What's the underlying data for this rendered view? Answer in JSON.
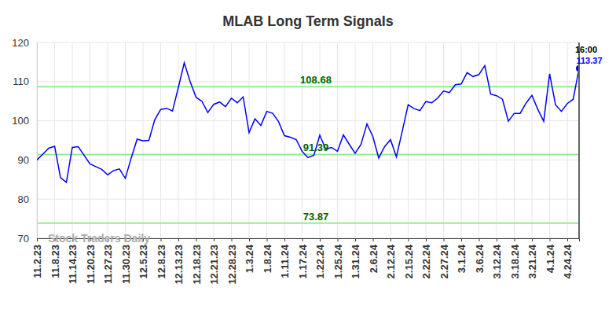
{
  "chart_data": {
    "type": "line",
    "title": "MLAB Long Term Signals",
    "watermark": "Stock Traders Daily",
    "last_time": "16:00",
    "color": "#0000ff",
    "ylim": [
      70,
      120
    ],
    "yticks": [
      70,
      80,
      90,
      100,
      110,
      120
    ],
    "grid": true,
    "signal_levels": [
      108.68,
      91.39,
      73.87
    ],
    "categories": [
      "11.2.23",
      null,
      null,
      "11.8.23",
      null,
      null,
      "11.14.23",
      null,
      null,
      "11.20.23",
      null,
      null,
      "11.27.23",
      null,
      null,
      "11.30.23",
      null,
      null,
      "12.5.23",
      null,
      null,
      "12.8.23",
      null,
      null,
      "12.13.23",
      null,
      null,
      "12.18.23",
      null,
      null,
      "12.21.23",
      null,
      null,
      "12.28.23",
      null,
      null,
      "1.3.24",
      null,
      null,
      "1.8.24",
      null,
      null,
      "1.11.24",
      null,
      null,
      "1.17.24",
      null,
      null,
      "1.22.24",
      null,
      null,
      "1.25.24",
      null,
      null,
      "1.31.24",
      null,
      null,
      "2.6.24",
      null,
      null,
      "2.12.24",
      null,
      null,
      "2.15.24",
      null,
      null,
      "2.22.24",
      null,
      null,
      "2.27.24",
      null,
      null,
      "3.1.24",
      null,
      null,
      "3.6.24",
      null,
      null,
      "3.12.24",
      null,
      null,
      "3.18.24",
      null,
      null,
      "3.21.24",
      null,
      null,
      "4.1.24",
      null,
      null,
      "4.24.24",
      null,
      null
    ],
    "values": [
      90,
      91.5,
      93,
      93.5,
      85.5,
      84.3,
      93.2,
      93.4,
      91.2,
      89,
      88.3,
      87.6,
      86.2,
      87.3,
      87.7,
      85.3,
      90.5,
      95.3,
      94.9,
      95,
      100.3,
      102.9,
      103.2,
      102.5,
      108.5,
      114.8,
      110,
      106,
      105,
      102.1,
      104.2,
      104.8,
      103.6,
      105.8,
      104.6,
      106.1,
      97,
      100.5,
      98.8,
      102.4,
      101.9,
      99.8,
      96.2,
      95.8,
      95.2,
      92.2,
      90.6,
      91.2,
      96.3,
      92.8,
      93.2,
      92.2,
      96.4,
      94,
      91.7,
      94,
      99.2,
      96,
      90.5,
      93.4,
      95.2,
      90.8,
      97.4,
      104.1,
      103.1,
      102.6,
      104.9,
      104.6,
      105.8,
      107.6,
      107.2,
      109.2,
      109.4,
      112.3,
      111.3,
      111.8,
      114.1,
      106.8,
      106.4,
      105.5,
      99.9,
      101.9,
      101.9,
      104.5,
      106.5,
      102.9,
      99.9,
      112,
      104.1,
      102.4,
      104.4,
      105.5,
      113.37
    ]
  }
}
